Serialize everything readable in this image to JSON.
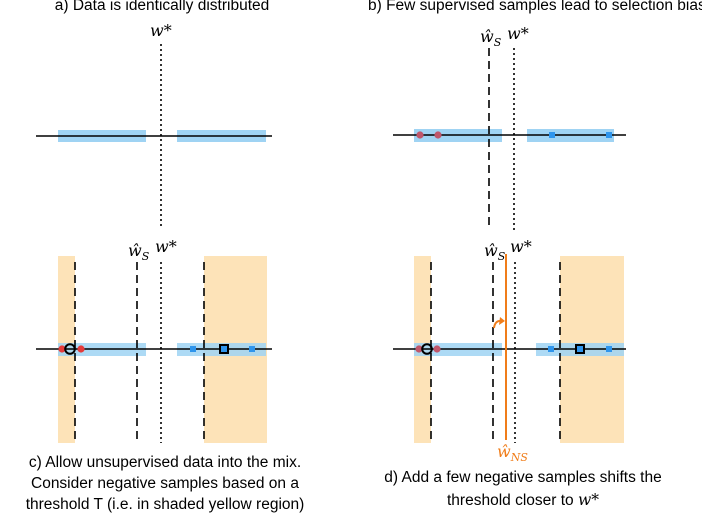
{
  "captions": {
    "a": "a) Data is identically distributed",
    "b": "b) Few supervised samples lead to selection bias",
    "c_line1": "c) Allow unsupervised data into the mix.",
    "c_line2": "Consider negative samples based on a",
    "c_line3": "threshold T (i.e. in shaded yellow region)",
    "d_line1": "d) Add a few negative samples shifts the",
    "d_line2": "threshold closer to "
  },
  "symbols": {
    "w_star": "w*",
    "w_hat_base": "ŵ",
    "sub_s": "S",
    "sub_ns": "NS"
  },
  "colors": {
    "band": "#9fd3f3",
    "shade": "#fde3b8",
    "positive": "#e53b3b",
    "negative": "#2f95ec",
    "w_ns_line": "#f07d1a",
    "axis": "#000000"
  }
}
